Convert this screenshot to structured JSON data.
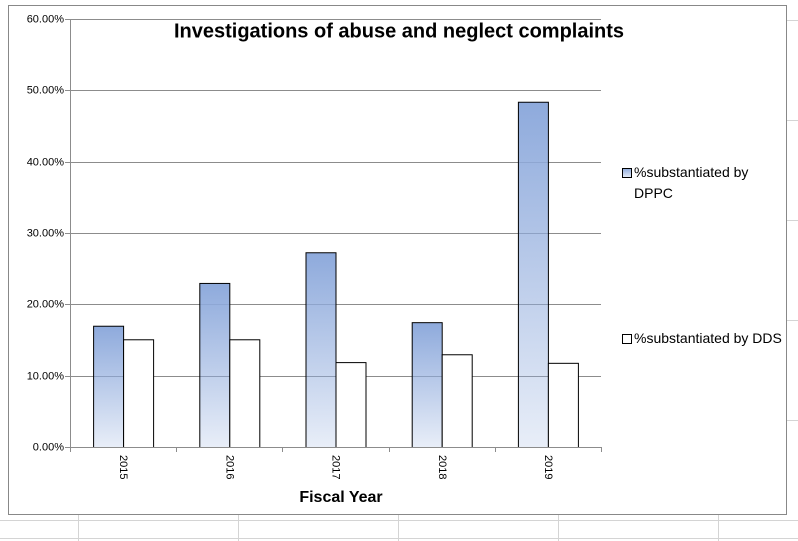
{
  "chart_data": {
    "type": "bar",
    "title": "Investigations of abuse and neglect complaints",
    "x_label": "Fiscal Year",
    "categories": [
      "2015",
      "2016",
      "2017",
      "2018",
      "2019"
    ],
    "series": [
      {
        "name": "%substantiated by DPPC",
        "color": "#8eaadc",
        "gradient": true,
        "values": [
          17.0,
          23.0,
          27.3,
          17.5,
          48.4
        ]
      },
      {
        "name": "%substantiated by DDS",
        "color": "#ffffff",
        "gradient": false,
        "values": [
          15.1,
          15.1,
          11.9,
          13.0,
          11.8
        ]
      }
    ],
    "ylim": [
      0,
      60
    ],
    "yticks": [
      {
        "value": 0,
        "label": "0.00%"
      },
      {
        "value": 10,
        "label": "10.00%"
      },
      {
        "value": 20,
        "label": "20.00%"
      },
      {
        "value": 30,
        "label": "30.00%"
      },
      {
        "value": 40,
        "label": "40.00%"
      },
      {
        "value": 50,
        "label": "50.00%"
      },
      {
        "value": 60,
        "label": "60.00%"
      }
    ],
    "grid": true,
    "legend": "right"
  }
}
